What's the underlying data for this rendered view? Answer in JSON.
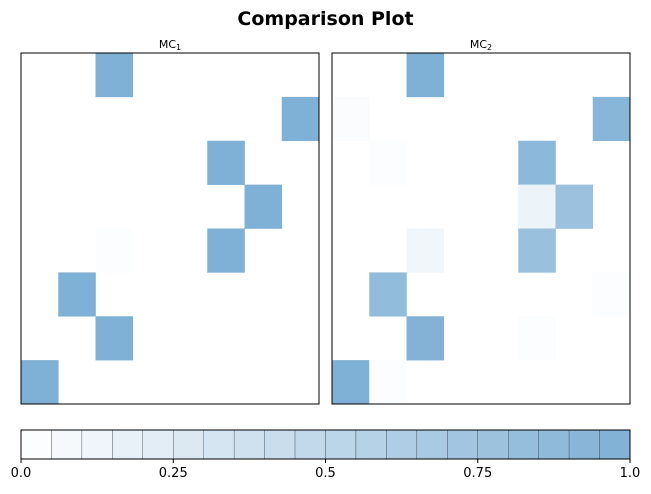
{
  "figure": {
    "title": "Comparison Plot"
  },
  "chart_data": [
    {
      "type": "heatmap",
      "title_main": "MC",
      "title_sub": "1",
      "rows": 8,
      "cols": 8,
      "cmap": [
        "#ffffff",
        "#7fb0d5"
      ],
      "values": [
        [
          0,
          0,
          1,
          0,
          0,
          0,
          0,
          0
        ],
        [
          0,
          0,
          0,
          0,
          0,
          0,
          0,
          1
        ],
        [
          0,
          0,
          0,
          0,
          0,
          1,
          0,
          0
        ],
        [
          0,
          0,
          0,
          0,
          0,
          0,
          1,
          0
        ],
        [
          0,
          0,
          0.03,
          0,
          0,
          1,
          0,
          0
        ],
        [
          0,
          1,
          0,
          0,
          0,
          0,
          0,
          0
        ],
        [
          0,
          0,
          1,
          0,
          0,
          0,
          0,
          0
        ],
        [
          1,
          0,
          0,
          0,
          0,
          0,
          0,
          0
        ]
      ]
    },
    {
      "type": "heatmap",
      "title_main": "MC",
      "title_sub": "2",
      "rows": 8,
      "cols": 8,
      "cmap": [
        "#ffffff",
        "#7fb0d5"
      ],
      "values": [
        [
          0,
          0,
          1,
          0,
          0,
          0,
          0,
          0
        ],
        [
          0.04,
          0,
          0,
          0,
          0,
          0,
          0,
          0.93
        ],
        [
          0,
          0.03,
          0,
          0,
          0,
          0.9,
          0,
          0
        ],
        [
          0,
          0,
          0,
          0,
          0,
          0.15,
          0.78,
          0
        ],
        [
          0,
          0,
          0.12,
          0,
          0,
          0.8,
          0,
          0
        ],
        [
          0,
          0.85,
          0,
          0,
          0,
          0,
          0,
          0.03
        ],
        [
          0,
          0,
          0.97,
          0,
          0,
          0.03,
          0,
          0
        ],
        [
          1,
          0.03,
          0,
          0,
          0,
          0,
          0,
          0
        ]
      ]
    }
  ],
  "colorbar": {
    "min": 0,
    "max": 1,
    "segments": 20,
    "ticks": [
      {
        "value": 0,
        "label": "0.0"
      },
      {
        "value": 0.25,
        "label": "0.25"
      },
      {
        "value": 0.5,
        "label": "0.5"
      },
      {
        "value": 0.75,
        "label": "0.75"
      },
      {
        "value": 1,
        "label": "1.0"
      }
    ]
  }
}
